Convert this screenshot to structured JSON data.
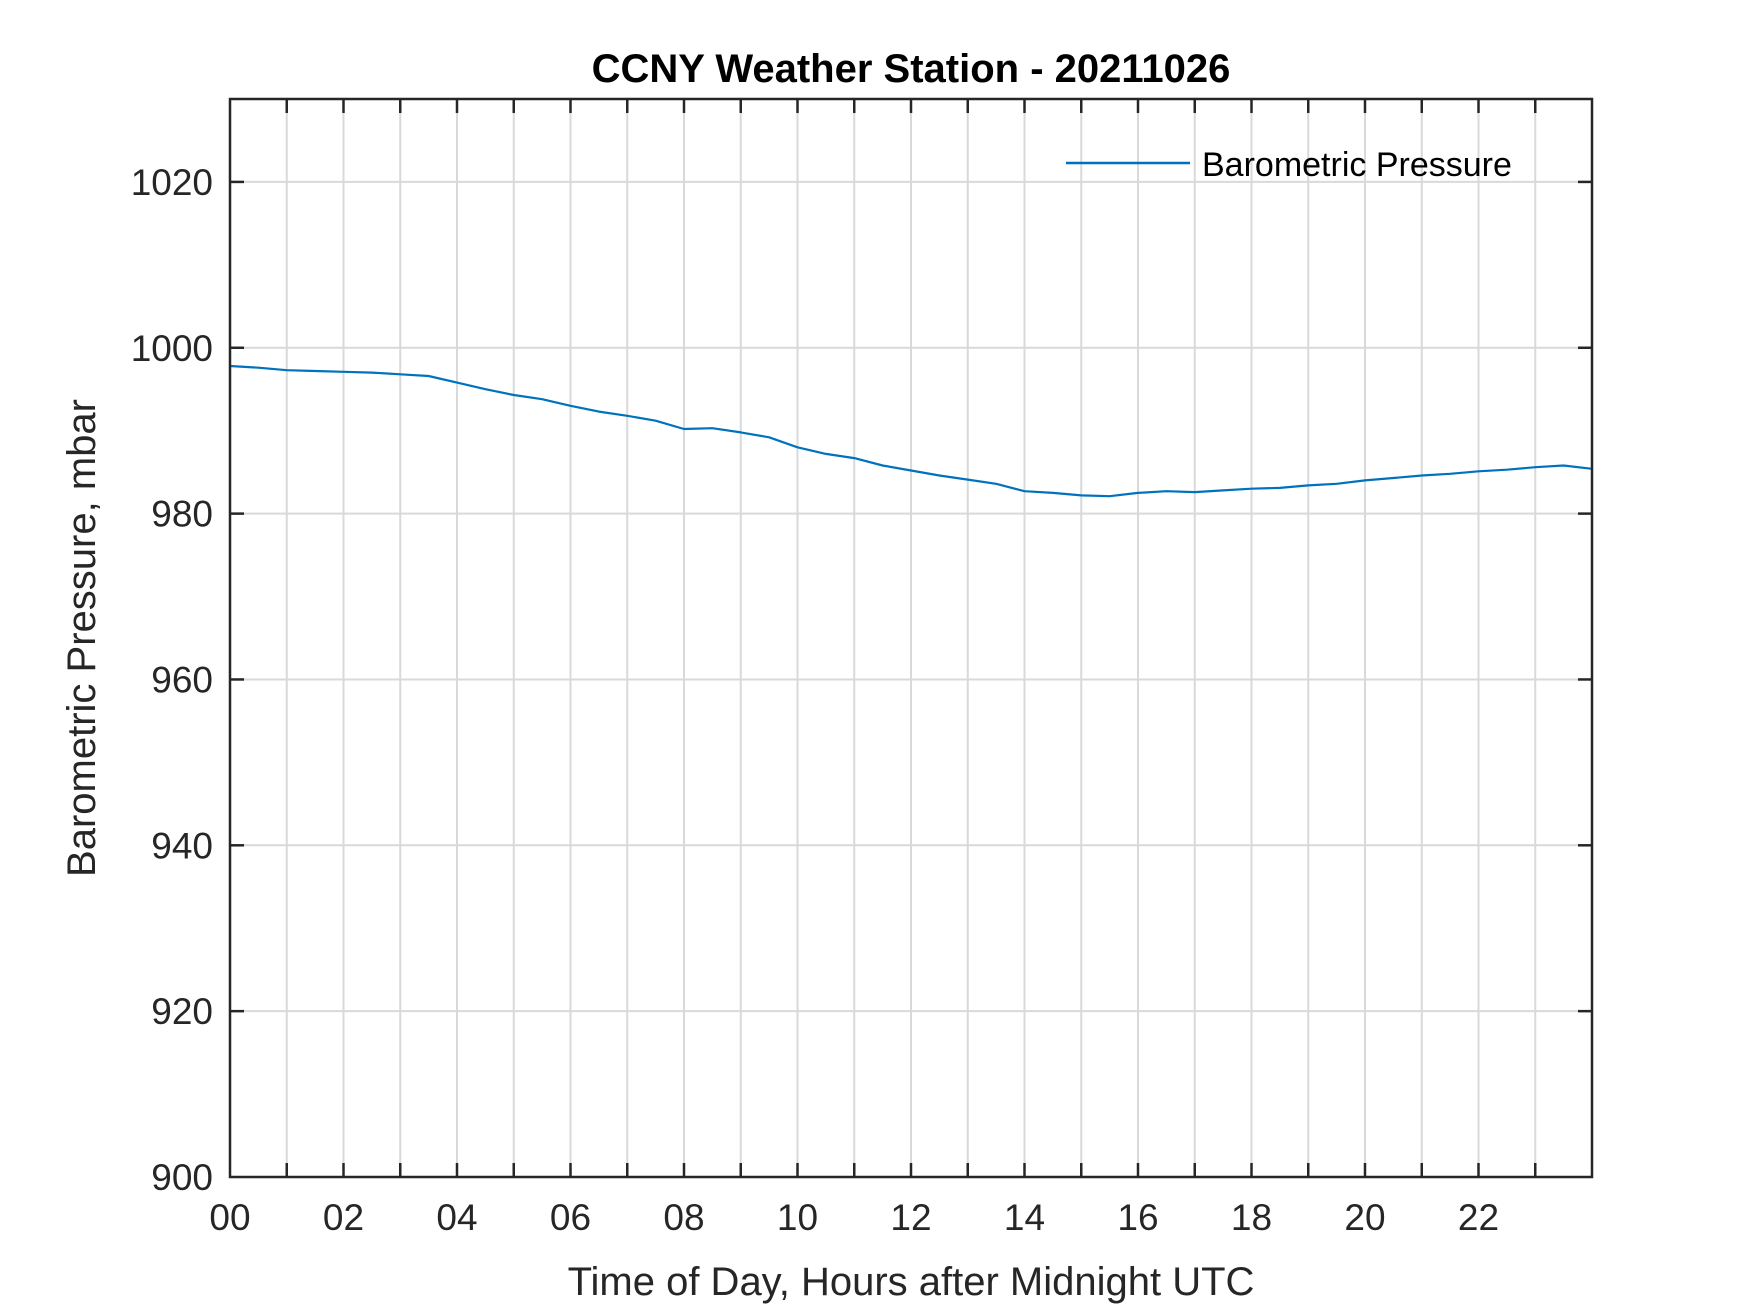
{
  "chart_data": {
    "type": "line",
    "title": "CCNY Weather Station - 20211026",
    "xlabel": "Time of Day, Hours after Midnight UTC",
    "ylabel": "Barometric Pressure, mbar",
    "xlim": [
      0,
      24
    ],
    "ylim": [
      900,
      1030
    ],
    "x_tick_labels": [
      "00",
      "02",
      "04",
      "06",
      "08",
      "10",
      "12",
      "14",
      "16",
      "18",
      "20",
      "22"
    ],
    "y_tick_labels": [
      "900",
      "920",
      "940",
      "960",
      "980",
      "1000",
      "1020"
    ],
    "grid": true,
    "legend_position": "top-right",
    "series": [
      {
        "name": "Barometric Pressure",
        "color": "#0072BD",
        "x": [
          0,
          0.5,
          1,
          1.5,
          2,
          2.5,
          3,
          3.5,
          4,
          4.5,
          5,
          5.5,
          6,
          6.5,
          7,
          7.5,
          8,
          8.5,
          9,
          9.5,
          10,
          10.5,
          11,
          11.5,
          12,
          12.5,
          13,
          13.5,
          14,
          14.5,
          15,
          15.5,
          16,
          16.5,
          17,
          17.5,
          18,
          18.5,
          19,
          19.5,
          20,
          20.5,
          21,
          21.5,
          22,
          22.5,
          23,
          23.5,
          24
        ],
        "y": [
          997.8,
          997.6,
          997.3,
          997.2,
          997.1,
          997.0,
          996.8,
          996.6,
          995.8,
          995.0,
          994.3,
          993.8,
          993.0,
          992.3,
          991.8,
          991.2,
          990.2,
          990.3,
          989.8,
          989.2,
          988.0,
          987.2,
          986.7,
          985.8,
          985.2,
          984.6,
          984.1,
          983.6,
          982.7,
          982.5,
          982.2,
          982.1,
          982.5,
          982.7,
          982.6,
          982.8,
          983.0,
          983.1,
          983.4,
          983.6,
          984.0,
          984.3,
          984.6,
          984.8,
          985.1,
          985.3,
          985.6,
          985.8,
          985.4
        ]
      }
    ]
  }
}
